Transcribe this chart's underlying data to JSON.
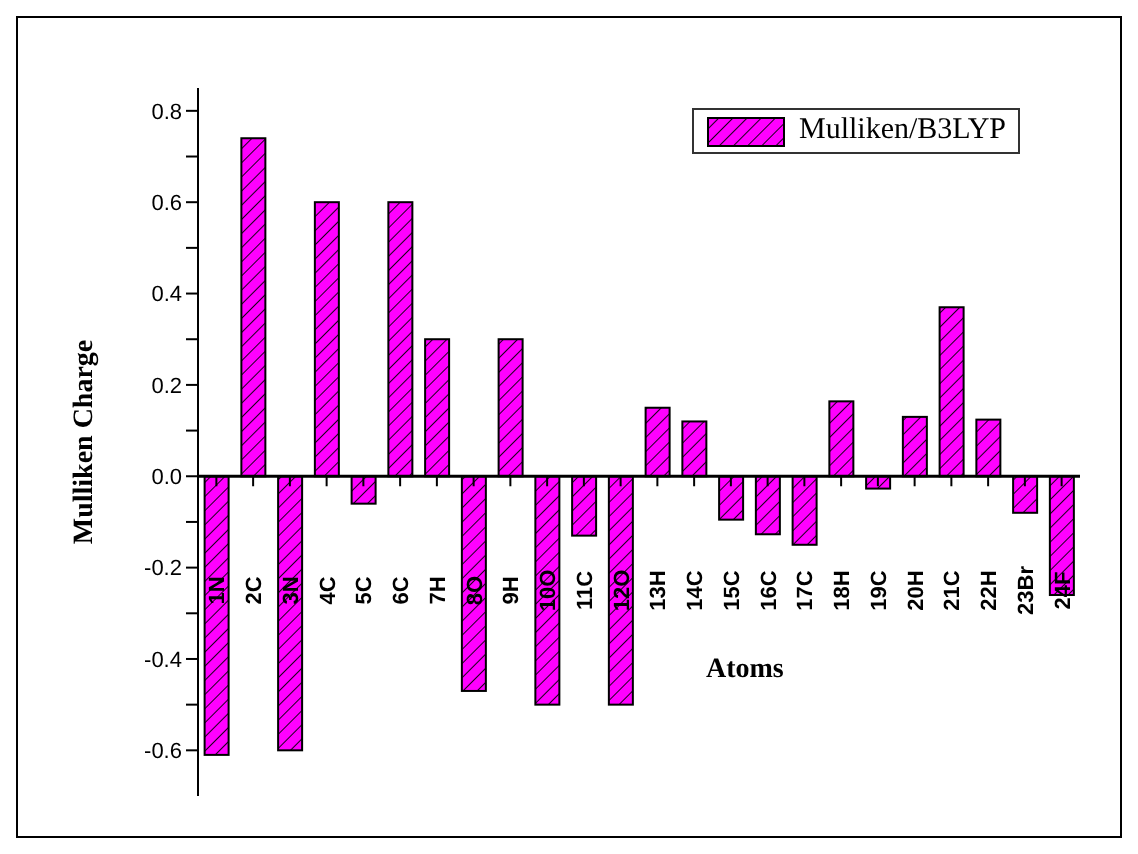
{
  "chart_data": {
    "type": "bar",
    "xlabel": "Atoms",
    "ylabel": "Mulliken Charge",
    "categories": [
      "1N",
      "2C",
      "3N",
      "4C",
      "5C",
      "6C",
      "7H",
      "8O",
      "9H",
      "10O",
      "11C",
      "12O",
      "13H",
      "14C",
      "15C",
      "16C",
      "17C",
      "18H",
      "19C",
      "20H",
      "21C",
      "22H",
      "23Br",
      "24F"
    ],
    "series": [
      {
        "name": "Mulliken/B3LYP",
        "color": "#ff00ff",
        "values": [
          -0.61,
          0.74,
          -0.6,
          0.6,
          -0.06,
          0.6,
          0.3,
          -0.47,
          0.3,
          -0.5,
          -0.13,
          -0.5,
          0.15,
          0.12,
          -0.095,
          -0.127,
          -0.15,
          0.164,
          -0.027,
          0.13,
          0.37,
          0.124,
          -0.08,
          -0.26
        ]
      }
    ],
    "ylim": [
      -0.7,
      0.85
    ],
    "yticks": [
      -0.6,
      {
        "value": -0.5,
        "label": null
      },
      -0.4,
      {
        "value": -0.3,
        "label": null
      },
      -0.2,
      {
        "value": -0.1,
        "label": null
      },
      {
        "value": 0,
        "label": "0.0"
      },
      {
        "value": 0.1,
        "label": null
      },
      0.2,
      {
        "value": 0.3,
        "label": null
      },
      0.4,
      {
        "value": 0.5,
        "label": null
      },
      0.6,
      {
        "value": 0.7,
        "label": null
      },
      0.8
    ],
    "ref_lines": [
      {
        "axis": "y",
        "value": 0,
        "color": "#000000"
      }
    ],
    "grid": false,
    "legend": "top right"
  }
}
